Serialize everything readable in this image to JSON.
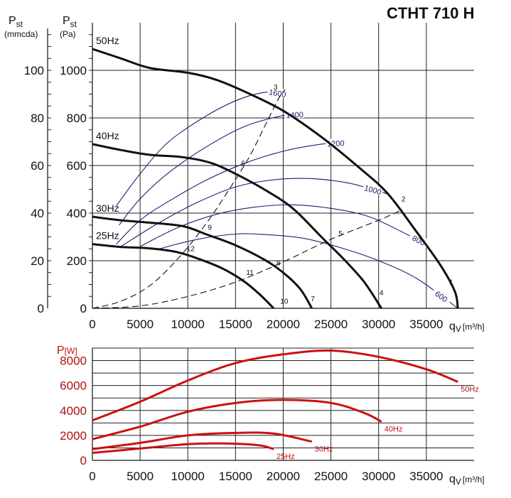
{
  "title": "CTHT 710 H",
  "chart_data": [
    {
      "type": "line",
      "ylabel_left": {
        "main": "P",
        "sub": "st",
        "unit": "(mmcda)"
      },
      "ylabel_right": {
        "main": "P",
        "sub": "st",
        "unit": "(Pa)"
      },
      "xlabel": {
        "main": "q",
        "sub": "V",
        "unit": "[m³/h]"
      },
      "xlim": [
        0,
        40000
      ],
      "ylim": [
        0,
        1200
      ],
      "ylim_mmcda": [
        0,
        120
      ],
      "x_ticks": [
        0,
        5000,
        10000,
        15000,
        20000,
        25000,
        30000,
        35000
      ],
      "y_ticks_pa": [
        0,
        200,
        400,
        600,
        800,
        1000
      ],
      "y_ticks_mmcda": [
        0,
        20,
        40,
        60,
        80,
        100
      ],
      "grid": true,
      "series": [
        {
          "name": "50Hz",
          "points": [
            [
              0,
              1090
            ],
            [
              3000,
              1050
            ],
            [
              6000,
              1010
            ],
            [
              10000,
              990
            ],
            [
              13000,
              960
            ],
            [
              16000,
              910
            ],
            [
              20000,
              830
            ],
            [
              24000,
              720
            ],
            [
              28000,
              590
            ],
            [
              31000,
              480
            ],
            [
              34000,
              320
            ],
            [
              36500,
              180
            ],
            [
              38000,
              70
            ],
            [
              38300,
              0
            ]
          ]
        },
        {
          "name": "40Hz",
          "points": [
            [
              0,
              690
            ],
            [
              3000,
              665
            ],
            [
              6000,
              645
            ],
            [
              9500,
              635
            ],
            [
              12500,
              610
            ],
            [
              15000,
              565
            ],
            [
              18000,
              500
            ],
            [
              21000,
              420
            ],
            [
              24000,
              300
            ],
            [
              26500,
              200
            ],
            [
              28500,
              110
            ],
            [
              30300,
              0
            ]
          ]
        },
        {
          "name": "30Hz",
          "points": [
            [
              0,
              385
            ],
            [
              3000,
              370
            ],
            [
              6000,
              360
            ],
            [
              9500,
              345
            ],
            [
              12000,
              310
            ],
            [
              15000,
              265
            ],
            [
              18000,
              205
            ],
            [
              20000,
              150
            ],
            [
              21800,
              80
            ],
            [
              23000,
              0
            ]
          ]
        },
        {
          "name": "25Hz",
          "points": [
            [
              0,
              270
            ],
            [
              3000,
              258
            ],
            [
              6000,
              252
            ],
            [
              9000,
              235
            ],
            [
              12000,
              195
            ],
            [
              14000,
              160
            ],
            [
              16000,
              110
            ],
            [
              17500,
              60
            ],
            [
              19000,
              0
            ]
          ]
        }
      ],
      "rpm_curves": [
        {
          "label": "1600",
          "points": [
            [
              2500,
              430
            ],
            [
              5000,
              565
            ],
            [
              8000,
              700
            ],
            [
              12000,
              810
            ],
            [
              15500,
              880
            ],
            [
              18500,
              910
            ],
            [
              20000,
              900
            ]
          ]
        },
        {
          "label": "1400",
          "points": [
            [
              2800,
              350
            ],
            [
              5000,
              460
            ],
            [
              8000,
              570
            ],
            [
              12000,
              680
            ],
            [
              16000,
              765
            ],
            [
              20000,
              810
            ],
            [
              22000,
              815
            ]
          ]
        },
        {
          "label": "1200",
          "points": [
            [
              2500,
              270
            ],
            [
              5000,
              370
            ],
            [
              8000,
              450
            ],
            [
              12000,
              540
            ],
            [
              16000,
              610
            ],
            [
              20000,
              660
            ],
            [
              24000,
              690
            ],
            [
              26500,
              695
            ]
          ]
        },
        {
          "label": "1000",
          "points": [
            [
              3000,
              260
            ],
            [
              7000,
              360
            ],
            [
              11000,
              445
            ],
            [
              15000,
              510
            ],
            [
              19000,
              540
            ],
            [
              23000,
              545
            ],
            [
              27000,
              525
            ],
            [
              31000,
              480
            ]
          ]
        },
        {
          "label": "800",
          "points": [
            [
              5000,
              260
            ],
            [
              9000,
              340
            ],
            [
              13000,
              395
            ],
            [
              17000,
              425
            ],
            [
              21000,
              435
            ],
            [
              25000,
              420
            ],
            [
              29000,
              385
            ],
            [
              33000,
              310
            ],
            [
              35000,
              270
            ]
          ]
        },
        {
          "label": "600",
          "points": [
            [
              7000,
              250
            ],
            [
              11000,
              290
            ],
            [
              15000,
              312
            ],
            [
              18000,
              310
            ],
            [
              22000,
              295
            ],
            [
              26000,
              255
            ],
            [
              30000,
              200
            ],
            [
              34000,
              125
            ],
            [
              38300,
              0
            ]
          ]
        }
      ],
      "system_curves": [
        {
          "points": [
            [
              0,
              0
            ],
            [
              3000,
              30
            ],
            [
              6000,
              95
            ],
            [
              9000,
              210
            ],
            [
              12000,
              360
            ],
            [
              14500,
              510
            ],
            [
              16500,
              640
            ],
            [
              18000,
              760
            ],
            [
              19500,
              880
            ],
            [
              20200,
              920
            ]
          ]
        },
        {
          "points": [
            [
              0,
              0
            ],
            [
              5000,
              10
            ],
            [
              10000,
              50
            ],
            [
              15000,
              110
            ],
            [
              20000,
              195
            ],
            [
              25000,
              290
            ],
            [
              30000,
              370
            ],
            [
              32500,
              415
            ]
          ]
        }
      ],
      "point_labels": [
        {
          "label": "1",
          "x": 37600,
          "y": 100
        },
        {
          "label": "2",
          "x": 32600,
          "y": 450
        },
        {
          "label": "3",
          "x": 19200,
          "y": 920
        },
        {
          "label": "4",
          "x": 30300,
          "y": 55
        },
        {
          "label": "5",
          "x": 26000,
          "y": 305
        },
        {
          "label": "6",
          "x": 15800,
          "y": 600
        },
        {
          "label": "7",
          "x": 23100,
          "y": 30
        },
        {
          "label": "8",
          "x": 19500,
          "y": 180
        },
        {
          "label": "9",
          "x": 12300,
          "y": 330
        },
        {
          "label": "10",
          "x": 20100,
          "y": 20
        },
        {
          "label": "11",
          "x": 16500,
          "y": 140
        },
        {
          "label": "12",
          "x": 10300,
          "y": 240
        }
      ]
    },
    {
      "type": "line",
      "ylabel": {
        "main": "P",
        "unit": "[W]"
      },
      "xlabel": {
        "main": "q",
        "sub": "V",
        "unit": "[m³/h]"
      },
      "xlim": [
        0,
        40000
      ],
      "ylim": [
        0,
        9000
      ],
      "x_ticks": [
        0,
        5000,
        10000,
        15000,
        20000,
        25000,
        30000,
        35000
      ],
      "y_ticks": [
        0,
        2000,
        4000,
        6000,
        8000
      ],
      "grid": true,
      "series": [
        {
          "name": "50Hz",
          "points": [
            [
              0,
              3200
            ],
            [
              5000,
              4700
            ],
            [
              10000,
              6400
            ],
            [
              15000,
              7800
            ],
            [
              20000,
              8500
            ],
            [
              25000,
              8800
            ],
            [
              30000,
              8300
            ],
            [
              35000,
              7300
            ],
            [
              38300,
              6300
            ]
          ]
        },
        {
          "name": "40Hz",
          "points": [
            [
              0,
              1700
            ],
            [
              5000,
              2700
            ],
            [
              10000,
              3900
            ],
            [
              15000,
              4600
            ],
            [
              20000,
              4850
            ],
            [
              25000,
              4600
            ],
            [
              28500,
              3800
            ],
            [
              30300,
              3100
            ]
          ]
        },
        {
          "name": "30Hz",
          "points": [
            [
              0,
              900
            ],
            [
              5000,
              1400
            ],
            [
              10000,
              2000
            ],
            [
              15000,
              2200
            ],
            [
              19000,
              2150
            ],
            [
              23000,
              1500
            ]
          ]
        },
        {
          "name": "25Hz",
          "points": [
            [
              0,
              600
            ],
            [
              5000,
              950
            ],
            [
              10000,
              1300
            ],
            [
              14000,
              1350
            ],
            [
              17500,
              1200
            ],
            [
              19000,
              900
            ]
          ]
        }
      ]
    }
  ]
}
